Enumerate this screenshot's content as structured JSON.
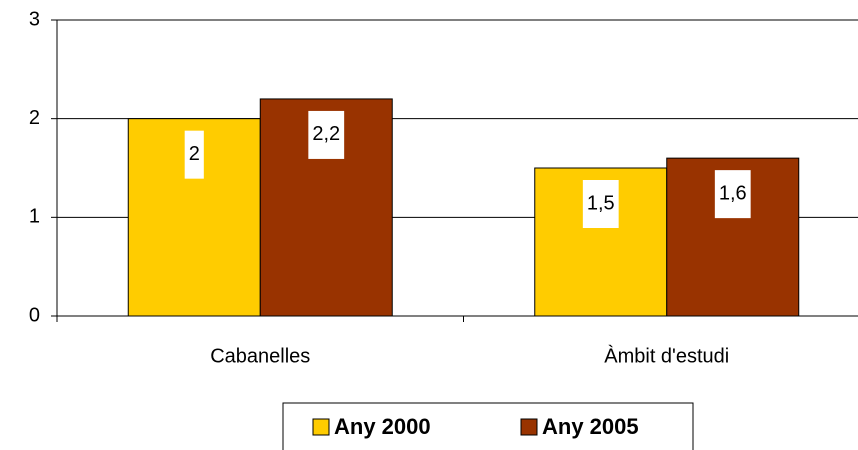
{
  "chart_data": {
    "type": "bar",
    "categories": [
      "Cabanelles",
      "Àmbit d'estudi"
    ],
    "series": [
      {
        "name": "Any 2000",
        "color": "#ffcc00",
        "values": [
          2,
          1.5
        ],
        "value_labels": [
          "2",
          "1,5"
        ]
      },
      {
        "name": "Any 2005",
        "color": "#993300",
        "values": [
          2.2,
          1.6
        ],
        "value_labels": [
          "2,2",
          "1,6"
        ]
      }
    ],
    "ylim": [
      0,
      3
    ],
    "yticks": [
      0,
      1,
      2,
      3
    ],
    "grid": true,
    "legend": "bottom"
  }
}
